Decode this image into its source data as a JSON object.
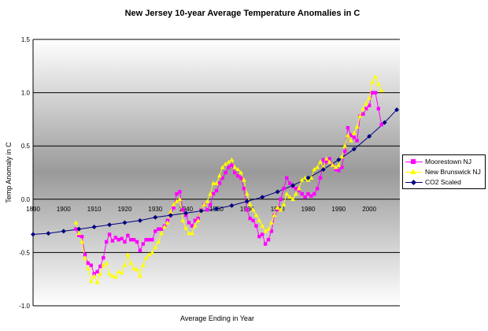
{
  "chart_data": {
    "type": "line",
    "title": "New Jersey 10-year Average Temperature Anomalies in C",
    "xlabel": "Average Ending in Year",
    "ylabel": "Temp Anomaly in C",
    "xlim": [
      1890,
      2010
    ],
    "ylim": [
      -1.0,
      1.5
    ],
    "x_ticks": [
      "1890",
      "1900",
      "1910",
      "1920",
      "1930",
      "1940",
      "1950",
      "1960",
      "1970",
      "1980",
      "1990",
      "2000"
    ],
    "y_ticks": [
      "1.5",
      "1.0",
      "0.5",
      "0.0",
      "-0.5",
      "-1.0"
    ],
    "grid": true,
    "legend_position": "right",
    "series": [
      {
        "name": "Moorestown NJ",
        "color": "#ff00ff",
        "marker": "square",
        "points": [
          [
            1904,
            -0.28
          ],
          [
            1905,
            -0.34
          ],
          [
            1906,
            -0.35
          ],
          [
            1907,
            -0.52
          ],
          [
            1908,
            -0.6
          ],
          [
            1909,
            -0.62
          ],
          [
            1910,
            -0.7
          ],
          [
            1911,
            -0.68
          ],
          [
            1912,
            -0.63
          ],
          [
            1913,
            -0.55
          ],
          [
            1914,
            -0.4
          ],
          [
            1915,
            -0.33
          ],
          [
            1916,
            -0.39
          ],
          [
            1917,
            -0.36
          ],
          [
            1918,
            -0.38
          ],
          [
            1919,
            -0.37
          ],
          [
            1920,
            -0.4
          ],
          [
            1921,
            -0.34
          ],
          [
            1922,
            -0.38
          ],
          [
            1923,
            -0.38
          ],
          [
            1924,
            -0.4
          ],
          [
            1925,
            -0.48
          ],
          [
            1926,
            -0.42
          ],
          [
            1927,
            -0.38
          ],
          [
            1928,
            -0.38
          ],
          [
            1929,
            -0.38
          ],
          [
            1930,
            -0.3
          ],
          [
            1931,
            -0.28
          ],
          [
            1932,
            -0.28
          ],
          [
            1933,
            -0.25
          ],
          [
            1934,
            -0.2
          ],
          [
            1935,
            -0.15
          ],
          [
            1936,
            -0.08
          ],
          [
            1937,
            0.05
          ],
          [
            1938,
            0.07
          ],
          [
            1939,
            -0.1
          ],
          [
            1940,
            -0.15
          ],
          [
            1941,
            -0.22
          ],
          [
            1942,
            -0.25
          ],
          [
            1943,
            -0.2
          ],
          [
            1944,
            -0.18
          ],
          [
            1945,
            -0.1
          ],
          [
            1946,
            -0.05
          ],
          [
            1947,
            -0.1
          ],
          [
            1948,
            -0.05
          ],
          [
            1949,
            0.05
          ],
          [
            1950,
            0.08
          ],
          [
            1951,
            0.15
          ],
          [
            1952,
            0.2
          ],
          [
            1953,
            0.25
          ],
          [
            1954,
            0.3
          ],
          [
            1955,
            0.32
          ],
          [
            1956,
            0.25
          ],
          [
            1957,
            0.22
          ],
          [
            1958,
            0.2
          ],
          [
            1959,
            0.1
          ],
          [
            1960,
            -0.1
          ],
          [
            1961,
            -0.18
          ],
          [
            1962,
            -0.2
          ],
          [
            1963,
            -0.25
          ],
          [
            1964,
            -0.35
          ],
          [
            1965,
            -0.33
          ],
          [
            1966,
            -0.42
          ],
          [
            1967,
            -0.38
          ],
          [
            1968,
            -0.3
          ],
          [
            1969,
            -0.15
          ],
          [
            1970,
            -0.1
          ],
          [
            1971,
            0.0
          ],
          [
            1972,
            0.1
          ],
          [
            1973,
            0.2
          ],
          [
            1974,
            0.15
          ],
          [
            1975,
            0.12
          ],
          [
            1976,
            0.1
          ],
          [
            1977,
            0.08
          ],
          [
            1978,
            0.05
          ],
          [
            1979,
            0.02
          ],
          [
            1980,
            0.05
          ],
          [
            1981,
            0.03
          ],
          [
            1982,
            0.05
          ],
          [
            1983,
            0.1
          ],
          [
            1984,
            0.2
          ],
          [
            1985,
            0.37
          ],
          [
            1986,
            0.35
          ],
          [
            1987,
            0.38
          ],
          [
            1988,
            0.32
          ],
          [
            1989,
            0.28
          ],
          [
            1990,
            0.27
          ],
          [
            1991,
            0.3
          ],
          [
            1992,
            0.45
          ],
          [
            1993,
            0.67
          ],
          [
            1994,
            0.6
          ],
          [
            1995,
            0.58
          ],
          [
            1996,
            0.55
          ],
          [
            1997,
            0.78
          ],
          [
            1998,
            0.8
          ],
          [
            1999,
            0.85
          ],
          [
            2000,
            0.88
          ],
          [
            2001,
            1.0
          ],
          [
            2002,
            1.0
          ],
          [
            2003,
            0.85
          ],
          [
            2004,
            0.7
          ]
        ]
      },
      {
        "name": "New Brunswick NJ",
        "color": "#ffff00",
        "marker": "triangle",
        "points": [
          [
            1904,
            -0.22
          ],
          [
            1905,
            -0.32
          ],
          [
            1906,
            -0.4
          ],
          [
            1907,
            -0.55
          ],
          [
            1908,
            -0.65
          ],
          [
            1909,
            -0.77
          ],
          [
            1910,
            -0.72
          ],
          [
            1911,
            -0.78
          ],
          [
            1912,
            -0.7
          ],
          [
            1913,
            -0.62
          ],
          [
            1914,
            -0.6
          ],
          [
            1915,
            -0.7
          ],
          [
            1916,
            -0.72
          ],
          [
            1917,
            -0.73
          ],
          [
            1918,
            -0.68
          ],
          [
            1919,
            -0.69
          ],
          [
            1920,
            -0.62
          ],
          [
            1921,
            -0.52
          ],
          [
            1922,
            -0.6
          ],
          [
            1923,
            -0.65
          ],
          [
            1924,
            -0.66
          ],
          [
            1925,
            -0.72
          ],
          [
            1926,
            -0.62
          ],
          [
            1927,
            -0.55
          ],
          [
            1928,
            -0.52
          ],
          [
            1929,
            -0.5
          ],
          [
            1930,
            -0.45
          ],
          [
            1931,
            -0.4
          ],
          [
            1932,
            -0.32
          ],
          [
            1933,
            -0.26
          ],
          [
            1934,
            -0.22
          ],
          [
            1935,
            -0.12
          ],
          [
            1936,
            -0.05
          ],
          [
            1937,
            -0.02
          ],
          [
            1938,
            0.0
          ],
          [
            1939,
            -0.2
          ],
          [
            1940,
            -0.27
          ],
          [
            1941,
            -0.32
          ],
          [
            1942,
            -0.32
          ],
          [
            1943,
            -0.25
          ],
          [
            1944,
            -0.2
          ],
          [
            1945,
            -0.1
          ],
          [
            1946,
            -0.05
          ],
          [
            1947,
            -0.02
          ],
          [
            1948,
            0.05
          ],
          [
            1949,
            0.15
          ],
          [
            1950,
            0.15
          ],
          [
            1951,
            0.22
          ],
          [
            1952,
            0.3
          ],
          [
            1953,
            0.33
          ],
          [
            1954,
            0.35
          ],
          [
            1955,
            0.37
          ],
          [
            1956,
            0.3
          ],
          [
            1957,
            0.28
          ],
          [
            1958,
            0.25
          ],
          [
            1959,
            0.18
          ],
          [
            1960,
            0.05
          ],
          [
            1961,
            -0.05
          ],
          [
            1962,
            -0.1
          ],
          [
            1963,
            -0.15
          ],
          [
            1964,
            -0.2
          ],
          [
            1965,
            -0.25
          ],
          [
            1966,
            -0.3
          ],
          [
            1967,
            -0.28
          ],
          [
            1968,
            -0.22
          ],
          [
            1969,
            -0.15
          ],
          [
            1970,
            -0.08
          ],
          [
            1971,
            -0.1
          ],
          [
            1972,
            -0.05
          ],
          [
            1973,
            0.05
          ],
          [
            1974,
            0.02
          ],
          [
            1975,
            0.0
          ],
          [
            1976,
            0.05
          ],
          [
            1977,
            0.1
          ],
          [
            1978,
            0.18
          ],
          [
            1979,
            0.2
          ],
          [
            1980,
            0.18
          ],
          [
            1981,
            0.2
          ],
          [
            1982,
            0.28
          ],
          [
            1983,
            0.3
          ],
          [
            1984,
            0.35
          ],
          [
            1985,
            0.3
          ],
          [
            1986,
            0.38
          ],
          [
            1987,
            0.35
          ],
          [
            1988,
            0.32
          ],
          [
            1989,
            0.3
          ],
          [
            1990,
            0.32
          ],
          [
            1991,
            0.4
          ],
          [
            1992,
            0.5
          ],
          [
            1993,
            0.6
          ],
          [
            1994,
            0.55
          ],
          [
            1995,
            0.62
          ],
          [
            1996,
            0.68
          ],
          [
            1997,
            0.78
          ],
          [
            1998,
            0.85
          ],
          [
            1999,
            0.9
          ],
          [
            2000,
            0.95
          ],
          [
            2001,
            1.1
          ],
          [
            2002,
            1.15
          ],
          [
            2003,
            1.08
          ],
          [
            2004,
            1.02
          ]
        ]
      },
      {
        "name": "CO2 Scaled",
        "color": "#000080",
        "marker": "diamond",
        "points": [
          [
            1890,
            -0.33
          ],
          [
            1895,
            -0.32
          ],
          [
            1900,
            -0.3
          ],
          [
            1905,
            -0.28
          ],
          [
            1910,
            -0.26
          ],
          [
            1915,
            -0.24
          ],
          [
            1920,
            -0.22
          ],
          [
            1925,
            -0.2
          ],
          [
            1930,
            -0.17
          ],
          [
            1935,
            -0.15
          ],
          [
            1940,
            -0.13
          ],
          [
            1945,
            -0.11
          ],
          [
            1950,
            -0.09
          ],
          [
            1955,
            -0.06
          ],
          [
            1960,
            -0.02
          ],
          [
            1965,
            0.02
          ],
          [
            1970,
            0.07
          ],
          [
            1975,
            0.13
          ],
          [
            1980,
            0.2
          ],
          [
            1985,
            0.28
          ],
          [
            1990,
            0.37
          ],
          [
            1995,
            0.47
          ],
          [
            2000,
            0.59
          ],
          [
            2005,
            0.72
          ],
          [
            2009,
            0.84
          ]
        ]
      }
    ]
  }
}
